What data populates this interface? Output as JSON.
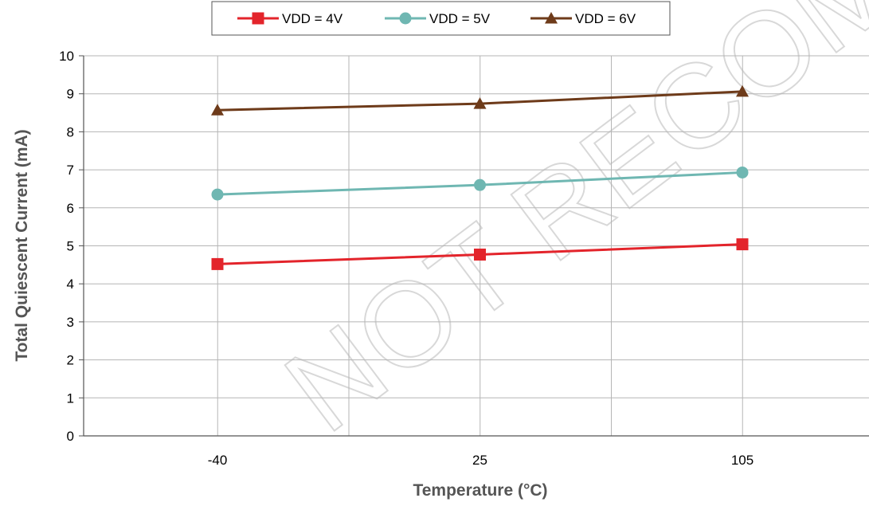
{
  "chart_data": {
    "type": "line",
    "xlabel": "Temperature (°C)",
    "ylabel": "Total Quiescent Current (mA)",
    "categories": [
      "-40",
      "25",
      "105"
    ],
    "ylim": [
      0,
      10
    ],
    "yticks": [
      "0",
      "1",
      "2",
      "3",
      "4",
      "5",
      "6",
      "7",
      "8",
      "9",
      "10"
    ],
    "grid": true,
    "legend_position": "top-center",
    "series": [
      {
        "name": "VDD = 4V",
        "values": [
          4.52,
          4.77,
          5.04
        ],
        "color": "#e3242b",
        "marker": "square"
      },
      {
        "name": "VDD = 5V",
        "values": [
          6.35,
          6.6,
          6.93
        ],
        "color": "#6fb7b2",
        "marker": "circle"
      },
      {
        "name": "VDD = 6V",
        "values": [
          8.57,
          8.74,
          9.06
        ],
        "color": "#6e3b1a",
        "marker": "triangle"
      }
    ]
  },
  "watermark": "NOT RECOMMENDED FOR NEW DESIGNS"
}
